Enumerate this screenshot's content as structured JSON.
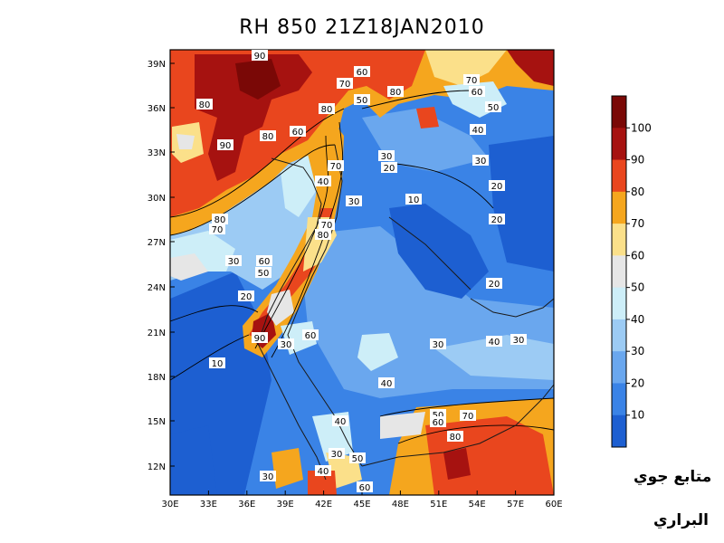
{
  "title": "RH 850  21Z18JAN2010",
  "map": {
    "lat_labels": [
      "39N",
      "36N",
      "33N",
      "30N",
      "27N",
      "24N",
      "21N",
      "18N",
      "15N",
      "12N"
    ],
    "lon_labels": [
      "30E",
      "33E",
      "36E",
      "39E",
      "42E",
      "45E",
      "48E",
      "51E",
      "54E",
      "57E",
      "60E"
    ]
  },
  "colorbar": {
    "levels": [
      "10",
      "20",
      "30",
      "40",
      "50",
      "60",
      "70",
      "80",
      "90",
      "100"
    ],
    "colors": [
      "#1d5fd1",
      "#3a83e6",
      "#6aa7ee",
      "#9ccbf4",
      "#cdeef8",
      "#e6e6e6",
      "#fbe08a",
      "#f5a61e",
      "#e9461e",
      "#a61210",
      "#7a0806"
    ]
  },
  "contour_labels": [
    {
      "text": "90"
    },
    {
      "text": "60"
    },
    {
      "text": "70"
    },
    {
      "text": "70"
    },
    {
      "text": "60"
    },
    {
      "text": "80"
    },
    {
      "text": "80"
    },
    {
      "text": "50"
    },
    {
      "text": "80"
    },
    {
      "text": "90"
    },
    {
      "text": "80"
    },
    {
      "text": "60"
    },
    {
      "text": "50"
    },
    {
      "text": "40"
    },
    {
      "text": "70"
    },
    {
      "text": "30"
    },
    {
      "text": "20"
    },
    {
      "text": "30"
    },
    {
      "text": "40"
    },
    {
      "text": "30"
    },
    {
      "text": "10"
    },
    {
      "text": "20"
    },
    {
      "text": "20"
    },
    {
      "text": "80"
    },
    {
      "text": "70"
    },
    {
      "text": "70"
    },
    {
      "text": "80"
    },
    {
      "text": "30"
    },
    {
      "text": "60"
    },
    {
      "text": "50"
    },
    {
      "text": "20"
    },
    {
      "text": "20"
    },
    {
      "text": "90"
    },
    {
      "text": "30"
    },
    {
      "text": "60"
    },
    {
      "text": "10"
    },
    {
      "text": "30"
    },
    {
      "text": "40"
    },
    {
      "text": "30"
    },
    {
      "text": "40"
    },
    {
      "text": "50"
    },
    {
      "text": "60"
    },
    {
      "text": "70"
    },
    {
      "text": "40"
    },
    {
      "text": "80"
    },
    {
      "text": "30"
    },
    {
      "text": "50"
    },
    {
      "text": "40"
    },
    {
      "text": "60"
    },
    {
      "text": "30"
    }
  ],
  "watermark": {
    "line1": "متابع جوي",
    "line2": "البراري"
  }
}
